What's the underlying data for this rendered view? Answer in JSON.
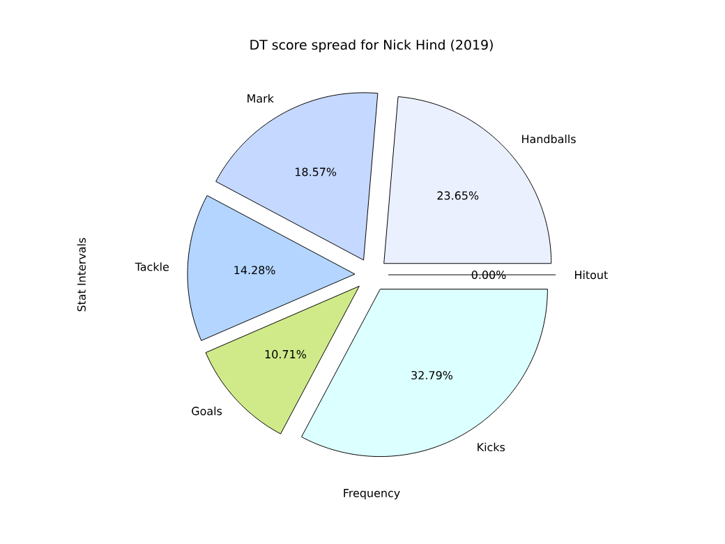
{
  "chart_data": {
    "type": "pie",
    "title": "DT score spread for Nick Hind (2019)",
    "xlabel": "Frequency",
    "ylabel": "Stat Intervals",
    "categories": [
      "Hitout",
      "Handballs",
      "Mark",
      "Tackle",
      "Goals",
      "Kicks"
    ],
    "values": [
      0.0,
      23.65,
      18.57,
      14.28,
      10.71,
      32.79
    ],
    "colors": [
      "#e8e8e8",
      "#eaf0fd",
      "#c5d8ff",
      "#b3d5ff",
      "#d0ea8a",
      "#dcffff"
    ],
    "value_labels": [
      "0.00%",
      "23.65%",
      "18.57%",
      "14.28%",
      "10.71%",
      "32.79%"
    ]
  }
}
